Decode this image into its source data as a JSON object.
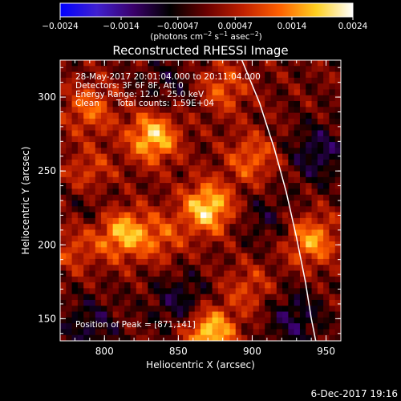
{
  "chart_data": {
    "type": "heatmap",
    "title": "Reconstructed RHESSI Image",
    "xlabel": "Heliocentric X (arcsec)",
    "ylabel": "Heliocentric Y (arcsec)",
    "xlim": [
      770,
      960
    ],
    "ylim": [
      135,
      325
    ],
    "x_ticks": [
      800,
      850,
      900,
      950
    ],
    "y_ticks": [
      150,
      200,
      250,
      300
    ],
    "grid": false,
    "colorbar": {
      "placement": "top",
      "ticks": [
        "−0.0024",
        "−0.0014",
        "−0.00047",
        "0.00047",
        "0.0014",
        "0.0024"
      ],
      "tick_values": [
        -0.0024,
        -0.0014,
        -0.00047,
        0.00047,
        0.0014,
        0.0024
      ],
      "range": [
        -0.0024,
        0.0024
      ],
      "units_prefix": "(photons cm",
      "units_sup1": "−2",
      "units_mid1": " s",
      "units_sup2": "−1",
      "units_mid2": " asec",
      "units_sup3": "−2",
      "units_suffix": ")",
      "colors": [
        "#0000ff",
        "#4020d0",
        "#3a006a",
        "#000000",
        "#6a0000",
        "#c02000",
        "#ff6000",
        "#ffd020",
        "#ffffff"
      ]
    },
    "annotations": [
      "28-May-2017 20:01:04.000 to 20:11:04.000",
      "Detectors: 3F 6F 8F, Att 0",
      "Energy Range: 12.0 - 25.0 keV",
      "Clean",
      "Total counts: 1.59E+04"
    ],
    "peak_label": "Position of Peak = [871,141]",
    "sources": [
      {
        "x": 833,
        "y": 273,
        "amp": 0.95
      },
      {
        "x": 870,
        "y": 225,
        "amp": 1.0
      },
      {
        "x": 812,
        "y": 208,
        "amp": 0.85
      },
      {
        "x": 871,
        "y": 141,
        "amp": 1.0
      },
      {
        "x": 940,
        "y": 203,
        "amp": 0.75
      },
      {
        "x": 838,
        "y": 205,
        "amp": 0.45
      },
      {
        "x": 790,
        "y": 292,
        "amp": 0.55
      },
      {
        "x": 880,
        "y": 306,
        "amp": 0.5
      },
      {
        "x": 900,
        "y": 258,
        "amp": 0.55
      },
      {
        "x": 790,
        "y": 248,
        "amp": 0.45
      },
      {
        "x": 898,
        "y": 170,
        "amp": 0.4
      },
      {
        "x": 780,
        "y": 198,
        "amp": 0.4
      }
    ],
    "negatives": [
      {
        "x": 945,
        "y": 262,
        "amp": 0.85
      },
      {
        "x": 852,
        "y": 160,
        "amp": 0.8
      },
      {
        "x": 790,
        "y": 145,
        "amp": 0.7
      },
      {
        "x": 928,
        "y": 150,
        "amp": 0.8
      },
      {
        "x": 843,
        "y": 308,
        "amp": 0.5
      },
      {
        "x": 910,
        "y": 218,
        "amp": 0.5
      },
      {
        "x": 792,
        "y": 228,
        "amp": 0.45
      }
    ],
    "limb": [
      [
        893,
        325
      ],
      [
        905,
        296
      ],
      [
        915,
        265
      ],
      [
        923,
        236
      ],
      [
        930,
        205
      ],
      [
        936,
        175
      ],
      [
        940,
        150
      ],
      [
        943,
        135
      ]
    ]
  },
  "footer": {
    "date": "6-Dec-2017 19:16"
  }
}
